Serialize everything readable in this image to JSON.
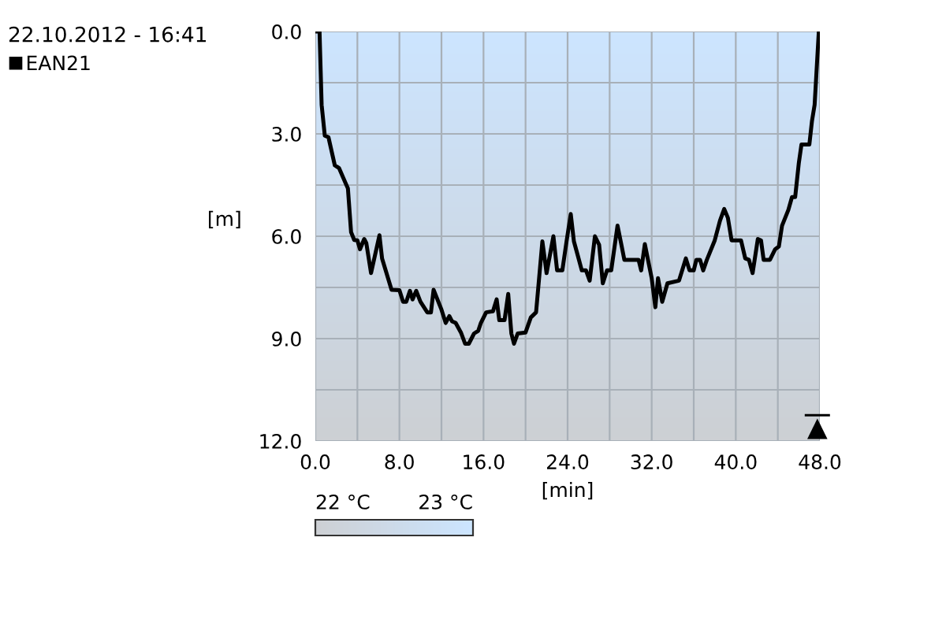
{
  "chart_data": {
    "type": "line",
    "title": "22.10.2012 - 16:41",
    "xlabel": "[min]",
    "ylabel": "[m]",
    "series": [
      {
        "name": "EAN21",
        "color": "#000000",
        "x": [
          0.15,
          0.4,
          0.6,
          0.9,
          1.25,
          1.85,
          2.25,
          2.9,
          3.1,
          3.4,
          3.7,
          4.0,
          4.25,
          4.65,
          4.85,
          5.3,
          6.1,
          6.35,
          7.25,
          8.0,
          8.35,
          8.65,
          9.0,
          9.25,
          9.6,
          10.0,
          10.65,
          11.0,
          11.25,
          12.0,
          12.4,
          12.75,
          13.0,
          13.35,
          13.85,
          14.25,
          14.6,
          15.1,
          15.5,
          15.75,
          16.25,
          16.9,
          17.25,
          17.5,
          18.0,
          18.35,
          18.65,
          18.9,
          19.25,
          20.0,
          20.5,
          21.0,
          21.6,
          22.0,
          22.65,
          23.0,
          23.5,
          23.9,
          24.3,
          24.6,
          25.0,
          25.35,
          25.75,
          26.1,
          26.6,
          27.0,
          27.35,
          27.75,
          28.15,
          28.75,
          29.15,
          29.4,
          30.75,
          31.0,
          31.35,
          31.75,
          32.0,
          32.35,
          32.6,
          33.0,
          33.5,
          34.6,
          35.25,
          35.6,
          36.0,
          36.25,
          36.6,
          36.9,
          37.25,
          38.0,
          38.5,
          38.9,
          39.25,
          39.6,
          40.5,
          40.9,
          41.25,
          41.6,
          42.1,
          42.4,
          42.65,
          43.25,
          43.75,
          44.1,
          44.4,
          45.0,
          45.35,
          45.65,
          46.0,
          46.25,
          47.0,
          47.25,
          47.5,
          47.9
        ],
        "values": [
          0.0,
          0.0,
          2.15,
          3.05,
          3.1,
          3.92,
          4.0,
          4.46,
          4.6,
          5.88,
          6.11,
          6.12,
          6.38,
          6.08,
          6.2,
          7.08,
          5.97,
          6.65,
          7.57,
          7.58,
          7.92,
          7.92,
          7.6,
          7.85,
          7.6,
          7.92,
          8.23,
          8.23,
          7.57,
          8.15,
          8.54,
          8.34,
          8.49,
          8.54,
          8.82,
          9.15,
          9.15,
          8.85,
          8.77,
          8.54,
          8.23,
          8.2,
          7.85,
          8.46,
          8.46,
          7.69,
          8.85,
          9.15,
          8.85,
          8.82,
          8.38,
          8.23,
          6.15,
          7.08,
          6.0,
          7.0,
          7.0,
          6.15,
          5.35,
          6.15,
          6.6,
          7.0,
          7.0,
          7.3,
          6.0,
          6.25,
          7.38,
          7.0,
          7.0,
          5.69,
          6.3,
          6.69,
          6.69,
          7.0,
          6.23,
          6.85,
          7.23,
          8.08,
          7.23,
          7.92,
          7.38,
          7.3,
          6.65,
          7.0,
          7.0,
          6.69,
          6.69,
          7.0,
          6.69,
          6.12,
          5.54,
          5.2,
          5.46,
          6.12,
          6.12,
          6.65,
          6.69,
          7.08,
          6.08,
          6.12,
          6.69,
          6.69,
          6.38,
          6.3,
          5.69,
          5.23,
          4.85,
          4.85,
          3.85,
          3.31,
          3.31,
          2.62,
          2.15,
          0.0
        ]
      }
    ],
    "xlim": [
      0,
      48
    ],
    "xticks": [
      {
        "value": 0,
        "label": "0.0"
      },
      {
        "value": 4,
        "label": null
      },
      {
        "value": 8,
        "label": "8.0"
      },
      {
        "value": 12,
        "label": null
      },
      {
        "value": 16,
        "label": "16.0"
      },
      {
        "value": 20,
        "label": null
      },
      {
        "value": 24,
        "label": "24.0"
      },
      {
        "value": 28,
        "label": null
      },
      {
        "value": 32,
        "label": "32.0"
      },
      {
        "value": 36,
        "label": null
      },
      {
        "value": 40,
        "label": "40.0"
      },
      {
        "value": 44,
        "label": null
      },
      {
        "value": 48,
        "label": "48.0"
      }
    ],
    "ylim": [
      12,
      0
    ],
    "yticks": [
      {
        "value": 0,
        "label": "0.0"
      },
      {
        "value": 1.5,
        "label": null
      },
      {
        "value": 3,
        "label": "3.0"
      },
      {
        "value": 4.5,
        "label": null
      },
      {
        "value": 6,
        "label": "6.0"
      },
      {
        "value": 7.5,
        "label": null
      },
      {
        "value": 9,
        "label": "9.0"
      },
      {
        "value": 10.5,
        "label": null
      },
      {
        "value": 12,
        "label": "12.0"
      }
    ],
    "clim": [
      22,
      23
    ],
    "cticks": [
      {
        "value": 22,
        "label": "22 °C"
      },
      {
        "value": 23,
        "label": "23 °C"
      }
    ],
    "grid": true,
    "legend": "top left",
    "marker": "none",
    "line_style": "solid"
  }
}
